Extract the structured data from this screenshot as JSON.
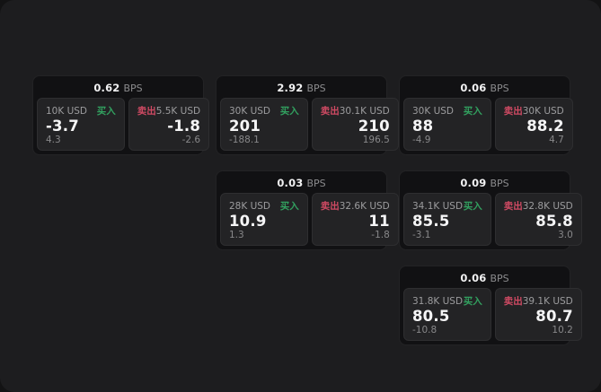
{
  "page": {
    "background": "#131314",
    "panel_background": "#1d1d1f",
    "card_background": "#111113"
  },
  "colors": {
    "buy_accent": "#32a05f",
    "sell_accent": "#cf4a63",
    "price_text": "#f5f5f6",
    "muted_text": "#9c9c9e"
  },
  "labels": {
    "bps": "BPS",
    "buy": "买入",
    "sell": "卖出"
  },
  "cards": [
    {
      "bps": "0.62",
      "col": 1,
      "row": 1,
      "buy_size": "10K USD",
      "buy_value": "-3.7",
      "buy_sub": "4.3",
      "sell_size": "5.5K USD",
      "sell_value": "-1.8",
      "sell_sub": "-2.6"
    },
    {
      "bps": "2.92",
      "col": 2,
      "row": 1,
      "buy_size": "30K USD",
      "buy_value": "201",
      "buy_sub": "-188.1",
      "sell_size": "30.1K USD",
      "sell_value": "210",
      "sell_sub": "196.5"
    },
    {
      "bps": "0.06",
      "col": 3,
      "row": 1,
      "buy_size": "30K USD",
      "buy_value": "88",
      "buy_sub": "-4.9",
      "sell_size": "30K USD",
      "sell_value": "88.2",
      "sell_sub": "4.7"
    },
    {
      "bps": "0.03",
      "col": 2,
      "row": 2,
      "buy_size": "28K USD",
      "buy_value": "10.9",
      "buy_sub": "1.3",
      "sell_size": "32.6K USD",
      "sell_value": "11",
      "sell_sub": "-1.8"
    },
    {
      "bps": "0.09",
      "col": 3,
      "row": 2,
      "buy_size": "34.1K USD",
      "buy_value": "85.5",
      "buy_sub": "-3.1",
      "sell_size": "32.8K USD",
      "sell_value": "85.8",
      "sell_sub": "3.0"
    },
    {
      "bps": "0.06",
      "col": 3,
      "row": 3,
      "buy_size": "31.8K USD",
      "buy_value": "80.5",
      "buy_sub": "-10.8",
      "sell_size": "39.1K USD",
      "sell_value": "80.7",
      "sell_sub": "10.2"
    }
  ]
}
